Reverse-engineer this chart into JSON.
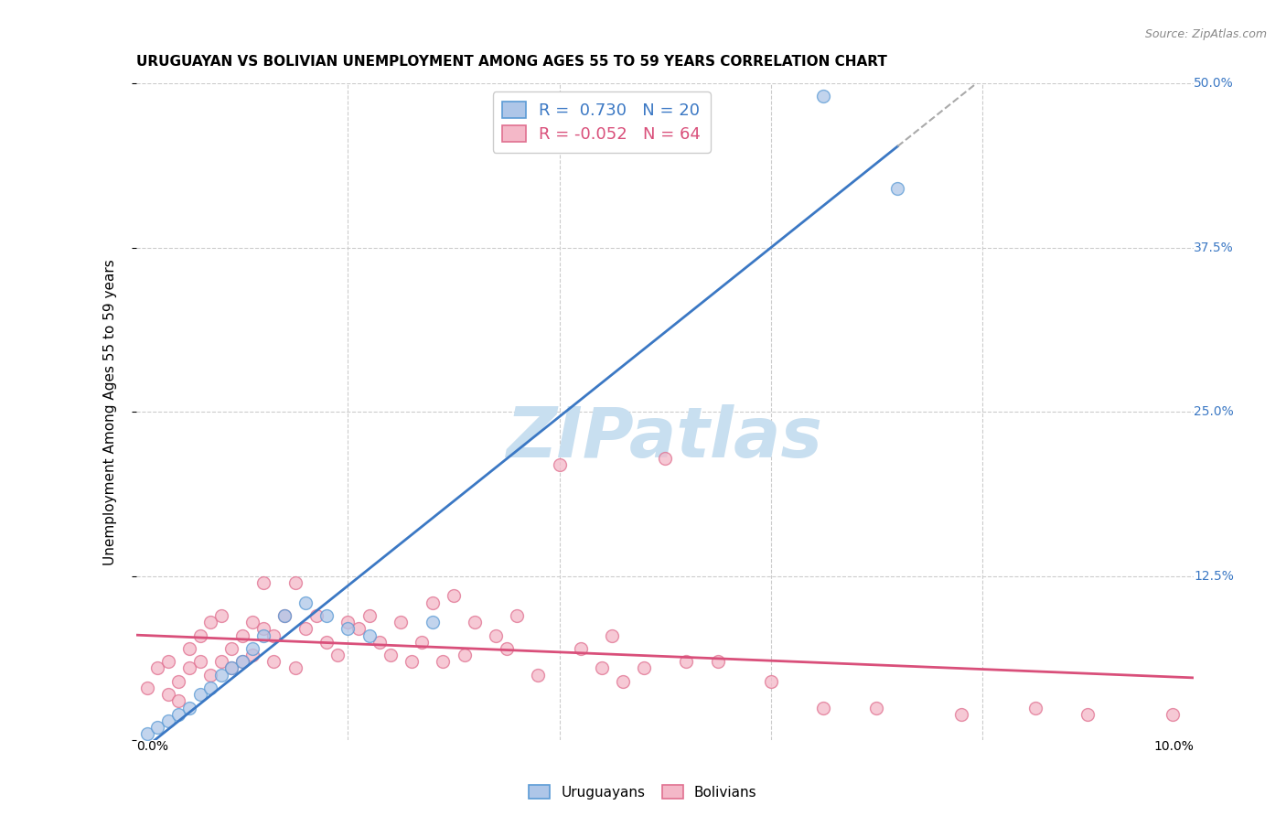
{
  "title": "URUGUAYAN VS BOLIVIAN UNEMPLOYMENT AMONG AGES 55 TO 59 YEARS CORRELATION CHART",
  "source": "Source: ZipAtlas.com",
  "ylabel": "Unemployment Among Ages 55 to 59 years",
  "xlim": [
    0.0,
    0.1
  ],
  "ylim": [
    0.0,
    0.5
  ],
  "yticks": [
    0.0,
    0.125,
    0.25,
    0.375,
    0.5
  ],
  "ytick_labels": [
    "",
    "12.5%",
    "25.0%",
    "37.5%",
    "50.0%"
  ],
  "uruguayan_color": "#aec6e8",
  "bolivian_color": "#f4b8c8",
  "uruguayan_edge": "#5b9bd5",
  "bolivian_edge": "#e07090",
  "line_uruguayan": "#3b78c4",
  "line_bolivian": "#d94f7a",
  "legend_R_uruguayan": "0.730",
  "legend_N_uruguayan": "20",
  "legend_R_bolivian": "-0.052",
  "legend_N_bolivian": "64",
  "uruguayan_x": [
    0.001,
    0.002,
    0.003,
    0.004,
    0.005,
    0.006,
    0.007,
    0.008,
    0.009,
    0.01,
    0.011,
    0.012,
    0.014,
    0.016,
    0.018,
    0.02,
    0.022,
    0.028,
    0.065,
    0.072
  ],
  "uruguayan_y": [
    0.005,
    0.01,
    0.015,
    0.02,
    0.025,
    0.035,
    0.04,
    0.05,
    0.055,
    0.06,
    0.07,
    0.08,
    0.095,
    0.105,
    0.095,
    0.085,
    0.08,
    0.09,
    0.49,
    0.42
  ],
  "bolivian_x": [
    0.001,
    0.002,
    0.003,
    0.003,
    0.004,
    0.004,
    0.005,
    0.005,
    0.006,
    0.006,
    0.007,
    0.007,
    0.008,
    0.008,
    0.009,
    0.009,
    0.01,
    0.01,
    0.011,
    0.011,
    0.012,
    0.012,
    0.013,
    0.013,
    0.014,
    0.015,
    0.015,
    0.016,
    0.017,
    0.018,
    0.019,
    0.02,
    0.021,
    0.022,
    0.023,
    0.024,
    0.025,
    0.026,
    0.027,
    0.028,
    0.029,
    0.03,
    0.031,
    0.032,
    0.034,
    0.035,
    0.036,
    0.038,
    0.04,
    0.042,
    0.044,
    0.045,
    0.046,
    0.048,
    0.05,
    0.052,
    0.055,
    0.06,
    0.065,
    0.07,
    0.078,
    0.085,
    0.09,
    0.098
  ],
  "bolivian_y": [
    0.04,
    0.055,
    0.035,
    0.06,
    0.03,
    0.045,
    0.055,
    0.07,
    0.06,
    0.08,
    0.05,
    0.09,
    0.06,
    0.095,
    0.07,
    0.055,
    0.08,
    0.06,
    0.09,
    0.065,
    0.085,
    0.12,
    0.06,
    0.08,
    0.095,
    0.055,
    0.12,
    0.085,
    0.095,
    0.075,
    0.065,
    0.09,
    0.085,
    0.095,
    0.075,
    0.065,
    0.09,
    0.06,
    0.075,
    0.105,
    0.06,
    0.11,
    0.065,
    0.09,
    0.08,
    0.07,
    0.095,
    0.05,
    0.21,
    0.07,
    0.055,
    0.08,
    0.045,
    0.055,
    0.215,
    0.06,
    0.06,
    0.045,
    0.025,
    0.025,
    0.02,
    0.025,
    0.02,
    0.02
  ],
  "background_color": "#ffffff",
  "grid_color": "#cccccc",
  "watermark": "ZIPatlas",
  "watermark_color": "#c8dff0",
  "title_fontsize": 11,
  "axis_label_fontsize": 11,
  "tick_fontsize": 10,
  "scatter_size": 100,
  "scatter_alpha": 0.75,
  "scatter_linewidth": 1.0
}
